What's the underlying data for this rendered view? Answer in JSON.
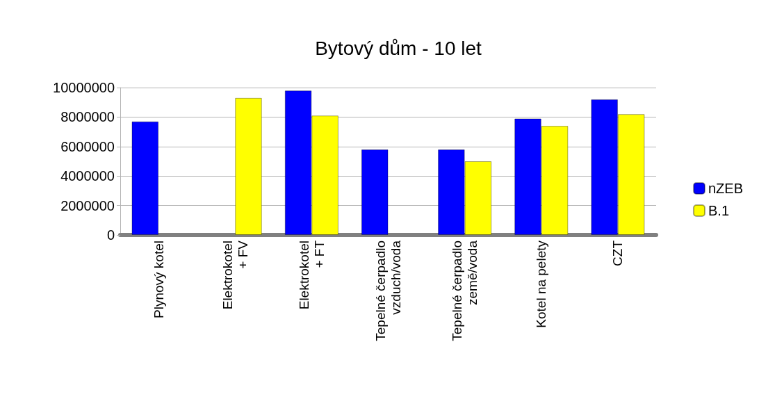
{
  "chart_data": {
    "type": "bar",
    "title": "Bytový dům - 10 let",
    "categories": [
      "Plynový kotel",
      "Elektrokotel\n+ FV",
      "Elektrokotel\n+ FT",
      "Tepelné čerpadlo\nvzduch/voda",
      "Tepelné čerpadlo\nzemě/voda",
      "Kotel na pelety",
      "CZT"
    ],
    "series": [
      {
        "name": "nZEB",
        "color": "#0000ff",
        "values": [
          7700000,
          null,
          9800000,
          5800000,
          5800000,
          7900000,
          9200000
        ]
      },
      {
        "name": "B.1",
        "color": "#ffff00",
        "values": [
          null,
          9300000,
          8100000,
          null,
          5000000,
          7400000,
          8200000
        ]
      }
    ],
    "ylim": [
      0,
      10000000
    ],
    "yticks": [
      0,
      2000000,
      4000000,
      6000000,
      8000000,
      10000000
    ],
    "grid": "y",
    "legend": "right"
  }
}
